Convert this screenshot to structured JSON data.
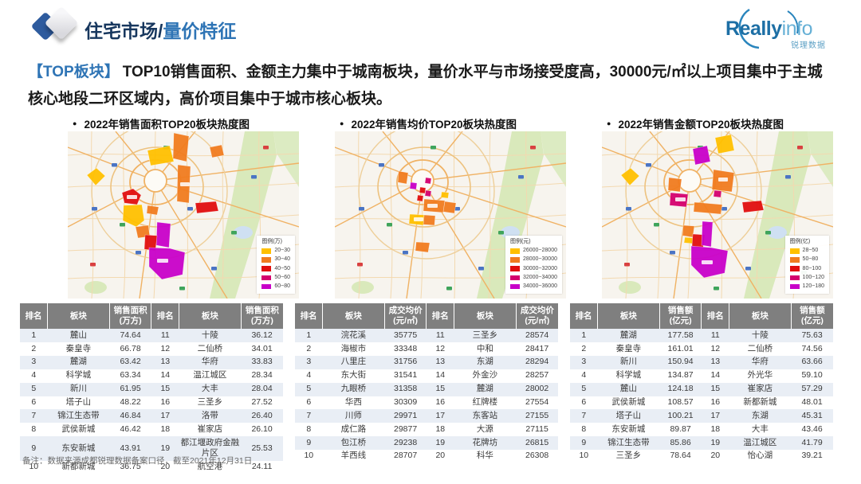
{
  "header": {
    "title_primary": "住宅市场/",
    "title_accent": "量价特征",
    "logo": {
      "main_a": "Really",
      "main_b": "info",
      "sub": "锐理数据"
    }
  },
  "summary": {
    "tag": "【TOP板块】",
    "text": "TOP10销售面积、金额主力集中于城南板块，量价水平与市场接受度高，30000元/㎡以上项目集中于主城核心地段二环区域内，高价项目集中于城市核心板块。"
  },
  "maps": [
    {
      "title": "2022年销售面积TOP20板块热度图",
      "legend_title": "图例(万)",
      "legend": [
        {
          "label": "20~30",
          "color": "#FFC000"
        },
        {
          "label": "30~40",
          "color": "#F07B1F"
        },
        {
          "label": "40~50",
          "color": "#E00E0E"
        },
        {
          "label": "50~60",
          "color": "#D4006E"
        },
        {
          "label": "60~80",
          "color": "#C800C8"
        }
      ]
    },
    {
      "title": "2022年销售均价TOP20板块热度图",
      "legend_title": "图例(元)",
      "legend": [
        {
          "label": "26000~28000",
          "color": "#FFC000"
        },
        {
          "label": "28000~30000",
          "color": "#F07B1F"
        },
        {
          "label": "30000~32000",
          "color": "#E00E0E"
        },
        {
          "label": "32000~34000",
          "color": "#D4006E"
        },
        {
          "label": "34000~36000",
          "color": "#C800C8"
        }
      ]
    },
    {
      "title": "2022年销售金额TOP20板块热度图",
      "legend_title": "图例(亿)",
      "legend": [
        {
          "label": "28~50",
          "color": "#FFC000"
        },
        {
          "label": "50~80",
          "color": "#F07B1F"
        },
        {
          "label": "80~100",
          "color": "#E00E0E"
        },
        {
          "label": "100~120",
          "color": "#D4006E"
        },
        {
          "label": "120~180",
          "color": "#C800C8"
        }
      ]
    }
  ],
  "tables": [
    {
      "headers": [
        "排名",
        "板块",
        "销售面积\n(万方)",
        "排名",
        "板块",
        "销售面积\n(万方)"
      ],
      "rows": [
        [
          "1",
          "麓山",
          "74.64",
          "11",
          "十陵",
          "36.12"
        ],
        [
          "2",
          "秦皇寺",
          "66.78",
          "12",
          "二仙桥",
          "34.01"
        ],
        [
          "3",
          "麓湖",
          "63.42",
          "13",
          "华府",
          "33.83"
        ],
        [
          "4",
          "科学城",
          "63.34",
          "14",
          "温江城区",
          "28.34"
        ],
        [
          "5",
          "新川",
          "61.95",
          "15",
          "大丰",
          "28.04"
        ],
        [
          "6",
          "塔子山",
          "48.22",
          "16",
          "三圣乡",
          "27.52"
        ],
        [
          "7",
          "锦江生态带",
          "46.84",
          "17",
          "洛带",
          "26.40"
        ],
        [
          "8",
          "武侯新城",
          "46.42",
          "18",
          "崔家店",
          "26.10"
        ],
        [
          "9",
          "东安新城",
          "43.91",
          "19",
          "都江堰政府金融片区",
          "25.53"
        ],
        [
          "10",
          "新都新城",
          "36.75",
          "20",
          "航空港",
          "24.11"
        ]
      ]
    },
    {
      "headers": [
        "排名",
        "板块",
        "成交均价\n(元/㎡)",
        "排名",
        "板块",
        "成交均价\n(元/㎡)"
      ],
      "rows": [
        [
          "1",
          "浣花溪",
          "35775",
          "11",
          "三圣乡",
          "28574"
        ],
        [
          "2",
          "海椒市",
          "33348",
          "12",
          "中和",
          "28417"
        ],
        [
          "3",
          "八里庄",
          "31756",
          "13",
          "东湖",
          "28294"
        ],
        [
          "4",
          "东大街",
          "31541",
          "14",
          "外金沙",
          "28257"
        ],
        [
          "5",
          "九眼桥",
          "31358",
          "15",
          "麓湖",
          "28002"
        ],
        [
          "6",
          "华西",
          "30309",
          "16",
          "红牌楼",
          "27554"
        ],
        [
          "7",
          "川师",
          "29971",
          "17",
          "东客站",
          "27155"
        ],
        [
          "8",
          "成仁路",
          "29877",
          "18",
          "大源",
          "27115"
        ],
        [
          "9",
          "包江桥",
          "29238",
          "19",
          "花牌坊",
          "26815"
        ],
        [
          "10",
          "羊西线",
          "28707",
          "20",
          "科华",
          "26308"
        ]
      ]
    },
    {
      "headers": [
        "排名",
        "板块",
        "销售额\n(亿元)",
        "排名",
        "板块",
        "销售额\n(亿元)"
      ],
      "rows": [
        [
          "1",
          "麓湖",
          "177.58",
          "11",
          "十陵",
          "75.63"
        ],
        [
          "2",
          "秦皇寺",
          "161.01",
          "12",
          "二仙桥",
          "74.56"
        ],
        [
          "3",
          "新川",
          "150.94",
          "13",
          "华府",
          "63.66"
        ],
        [
          "4",
          "科学城",
          "134.87",
          "14",
          "外光华",
          "59.10"
        ],
        [
          "5",
          "麓山",
          "124.18",
          "15",
          "崔家店",
          "57.29"
        ],
        [
          "6",
          "武侯新城",
          "108.57",
          "16",
          "新都新城",
          "48.01"
        ],
        [
          "7",
          "塔子山",
          "100.21",
          "17",
          "东湖",
          "45.31"
        ],
        [
          "8",
          "东安新城",
          "89.87",
          "18",
          "大丰",
          "43.46"
        ],
        [
          "9",
          "锦江生态带",
          "85.86",
          "19",
          "温江城区",
          "41.79"
        ],
        [
          "10",
          "三圣乡",
          "78.64",
          "20",
          "怡心湖",
          "39.21"
        ]
      ]
    }
  ],
  "footnote": "备注：数据来源成都锐理数据备案口径，截至2021年12月31日"
}
